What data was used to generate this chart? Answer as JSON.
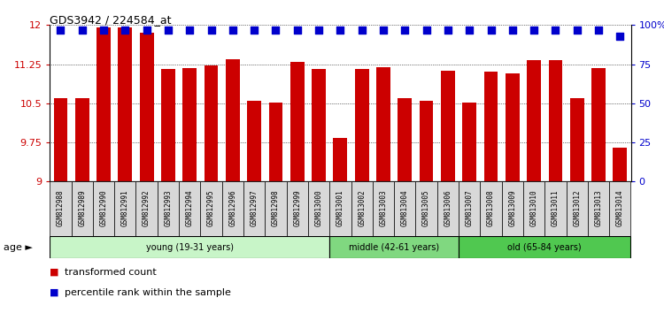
{
  "title": "GDS3942 / 224584_at",
  "samples": [
    "GSM812988",
    "GSM812989",
    "GSM812990",
    "GSM812991",
    "GSM812992",
    "GSM812993",
    "GSM812994",
    "GSM812995",
    "GSM812996",
    "GSM812997",
    "GSM812998",
    "GSM812999",
    "GSM813000",
    "GSM813001",
    "GSM813002",
    "GSM813003",
    "GSM813004",
    "GSM813005",
    "GSM813006",
    "GSM813007",
    "GSM813008",
    "GSM813009",
    "GSM813010",
    "GSM813011",
    "GSM813012",
    "GSM813013",
    "GSM813014"
  ],
  "red_values": [
    10.6,
    10.6,
    11.95,
    11.95,
    11.85,
    11.15,
    11.18,
    11.22,
    11.35,
    10.55,
    10.52,
    11.3,
    11.15,
    9.83,
    11.15,
    11.2,
    10.6,
    10.55,
    11.12,
    10.52,
    11.1,
    11.08,
    11.32,
    11.32,
    10.6,
    11.18,
    9.65
  ],
  "blue_values": [
    97,
    97,
    97,
    97,
    97,
    97,
    97,
    97,
    97,
    97,
    97,
    97,
    97,
    97,
    97,
    97,
    97,
    97,
    97,
    97,
    97,
    97,
    97,
    97,
    97,
    97,
    93
  ],
  "ylim_left": [
    9.0,
    12.0
  ],
  "ylim_right": [
    0,
    100
  ],
  "yticks_left": [
    9.0,
    9.75,
    10.5,
    11.25,
    12.0
  ],
  "yticks_right": [
    0,
    25,
    50,
    75,
    100
  ],
  "ytick_labels_left": [
    "9",
    "9.75",
    "10.5",
    "11.25",
    "12"
  ],
  "ytick_labels_right": [
    "0",
    "25",
    "50",
    "75",
    "100%"
  ],
  "groups": [
    {
      "label": "young (19-31 years)",
      "start": 0,
      "end": 13,
      "color": "#c8f5c8"
    },
    {
      "label": "middle (42-61 years)",
      "start": 13,
      "end": 19,
      "color": "#80d880"
    },
    {
      "label": "old (65-84 years)",
      "start": 19,
      "end": 27,
      "color": "#50c850"
    }
  ],
  "bar_color": "#cc0000",
  "dot_color": "#0000cc",
  "tick_bg_color": "#d8d8d8",
  "bar_width": 0.65,
  "dot_size": 28
}
